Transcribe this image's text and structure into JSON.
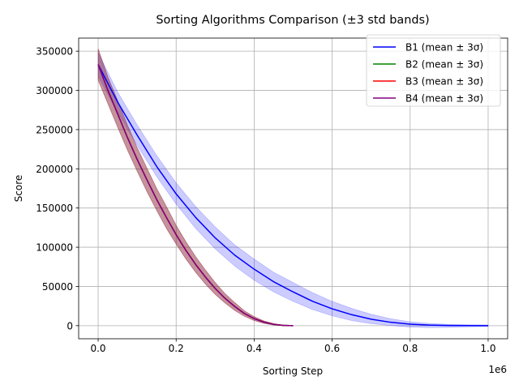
{
  "chart_data": {
    "type": "line",
    "title": "Sorting Algorithms Comparison (±3 std bands)",
    "xlabel": "Sorting Step",
    "ylabel": "Score",
    "x_offset_label": "1e6",
    "xlim": [
      -50000,
      1050000
    ],
    "ylim": [
      -16700,
      366700
    ],
    "x_ticks": [
      0,
      200000,
      400000,
      600000,
      800000,
      1000000
    ],
    "x_tick_labels": [
      "0.0",
      "0.2",
      "0.4",
      "0.6",
      "0.8",
      "1.0"
    ],
    "y_ticks": [
      0,
      50000,
      100000,
      150000,
      200000,
      250000,
      300000,
      350000
    ],
    "y_tick_labels": [
      "0",
      "50000",
      "100000",
      "150000",
      "200000",
      "250000",
      "300000",
      "350000"
    ],
    "grid": true,
    "legend_position": "top-right",
    "series": [
      {
        "name": "B1 (mean ± 3σ)",
        "color": "#0000ff",
        "x": [
          0,
          50000,
          100000,
          150000,
          200000,
          250000,
          300000,
          350000,
          400000,
          450000,
          500000,
          550000,
          600000,
          650000,
          700000,
          750000,
          800000,
          850000,
          900000,
          950000,
          1000000
        ],
        "mean": [
          333000,
          285000,
          243000,
          203000,
          168000,
          138000,
          112000,
          90000,
          72000,
          56000,
          43000,
          31000,
          21500,
          14000,
          8200,
          4300,
          1900,
          700,
          200,
          30,
          0
        ],
        "lower": [
          318000,
          272000,
          230000,
          190000,
          155000,
          124000,
          98000,
          76000,
          58000,
          43000,
          31000,
          20500,
          12500,
          6500,
          2500,
          200,
          -1800,
          -2500,
          -2200,
          -1500,
          -1000
        ],
        "upper": [
          348000,
          298000,
          256000,
          217000,
          182000,
          152000,
          126000,
          103000,
          85000,
          68000,
          55000,
          42000,
          31000,
          22000,
          14500,
          8800,
          5000,
          2800,
          1600,
          1100,
          1000
        ]
      },
      {
        "name": "B2 (mean ± 3σ)",
        "color": "#008000",
        "x": [
          0,
          25000,
          50000,
          75000,
          100000,
          125000,
          150000,
          175000,
          200000,
          225000,
          250000,
          275000,
          300000,
          325000,
          350000,
          375000,
          400000,
          425000,
          450000,
          475000,
          500000
        ],
        "mean": [
          333000,
          300000,
          270000,
          240000,
          212000,
          186000,
          161000,
          138000,
          116000,
          96000,
          78000,
          62000,
          47500,
          35000,
          24500,
          15500,
          9000,
          4500,
          1700,
          350,
          0
        ],
        "lower": [
          313000,
          283000,
          253000,
          224000,
          197000,
          171000,
          147000,
          124000,
          104000,
          85000,
          68000,
          53000,
          40000,
          29000,
          19500,
          12000,
          6500,
          3000,
          800,
          0,
          0
        ],
        "upper": [
          353000,
          317000,
          287000,
          256000,
          227000,
          201000,
          175000,
          152000,
          128000,
          107000,
          88000,
          71000,
          55000,
          41000,
          29500,
          19000,
          11500,
          6000,
          2600,
          700,
          0
        ]
      },
      {
        "name": "B3 (mean ± 3σ)",
        "color": "#ff0000",
        "x": [
          0,
          25000,
          50000,
          75000,
          100000,
          125000,
          150000,
          175000,
          200000,
          225000,
          250000,
          275000,
          300000,
          325000,
          350000,
          375000,
          400000,
          425000,
          450000,
          475000,
          500000
        ],
        "mean": [
          333000,
          300000,
          270000,
          240000,
          212000,
          186000,
          161000,
          138000,
          116000,
          96000,
          78000,
          62000,
          47500,
          35000,
          24500,
          15500,
          9000,
          4500,
          1700,
          350,
          0
        ],
        "lower": [
          313000,
          283000,
          253000,
          224000,
          197000,
          171000,
          147000,
          124000,
          104000,
          85000,
          68000,
          53000,
          40000,
          29000,
          19500,
          12000,
          6500,
          3000,
          800,
          0,
          0
        ],
        "upper": [
          353000,
          317000,
          287000,
          256000,
          227000,
          201000,
          175000,
          152000,
          128000,
          107000,
          88000,
          71000,
          55000,
          41000,
          29500,
          19000,
          11500,
          6000,
          2600,
          700,
          0
        ]
      },
      {
        "name": "B4 (mean ± 3σ)",
        "color": "#800080",
        "x": [
          0,
          25000,
          50000,
          75000,
          100000,
          125000,
          150000,
          175000,
          200000,
          225000,
          250000,
          275000,
          300000,
          325000,
          350000,
          375000,
          400000,
          425000,
          450000,
          475000,
          500000
        ],
        "mean": [
          333000,
          300000,
          270000,
          240000,
          212000,
          186000,
          161000,
          138000,
          116000,
          96000,
          78000,
          62000,
          47500,
          35000,
          24500,
          15500,
          9000,
          4500,
          1700,
          350,
          0
        ],
        "lower": [
          313000,
          283000,
          253000,
          224000,
          197000,
          171000,
          147000,
          124000,
          104000,
          85000,
          68000,
          53000,
          40000,
          29000,
          19500,
          12000,
          6500,
          3000,
          800,
          0,
          0
        ],
        "upper": [
          353000,
          317000,
          287000,
          256000,
          227000,
          201000,
          175000,
          152000,
          128000,
          107000,
          88000,
          71000,
          55000,
          41000,
          29500,
          19000,
          11500,
          6000,
          2600,
          700,
          0
        ]
      }
    ]
  }
}
